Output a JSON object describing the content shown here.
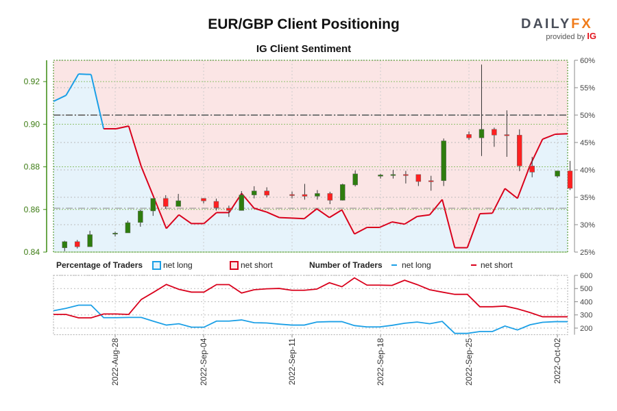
{
  "header": {
    "title": "EUR/GBP Client Positioning",
    "subtitle": "IG Client Sentiment",
    "logo_text": "DAILYFX",
    "logo_sub": "provided by",
    "logo_ig": "IG"
  },
  "legend": {
    "percentage_title": "Percentage of Traders",
    "pct_long": "net long",
    "pct_short": "net short",
    "number_title": "Number of Traders",
    "num_long": "net long",
    "num_short": "net short"
  },
  "colors": {
    "long": "#1a9fe6",
    "short": "#d9001b",
    "long_fill": "#e6f3fb",
    "short_fill": "#fbe5e5",
    "candle_up": "#2e7d0e",
    "candle_down": "#ff2020",
    "price_axis": "#3a8a10"
  },
  "chart_data": [
    {
      "type": "candlestick+line",
      "title": "EUR/GBP Client Positioning",
      "subtitle": "IG Client Sentiment",
      "price_axis": {
        "ticks": [
          "0.84",
          "0.86",
          "0.88",
          "0.90",
          "0.92"
        ],
        "ylim": [
          0.84,
          0.93
        ]
      },
      "percent_axis": {
        "ticks": [
          "25%",
          "30%",
          "35%",
          "40%",
          "45%",
          "50%",
          "55%",
          "60%"
        ],
        "ylim": [
          25,
          60
        ]
      },
      "reference_lines_percent": [
        50,
        33
      ],
      "x_ticks": [
        "2022-Aug-28",
        "2022-Sep-04",
        "2022-Sep-11",
        "2022-Sep-18",
        "2022-Sep-25",
        "2022-Oct-02"
      ],
      "net_long_percent": [
        52.5,
        53.6,
        57.5,
        57.4,
        47.5,
        47.5,
        48.0,
        40.6,
        35.0,
        29.3,
        31.8,
        30.2,
        30.2,
        32.2,
        32.2,
        35.7,
        33.0,
        32.3,
        31.3,
        31.2,
        31.1,
        32.9,
        31.3,
        32.7,
        28.3,
        29.5,
        29.5,
        30.5,
        30.1,
        31.5,
        31.8,
        34.6,
        25.8,
        25.8,
        32.0,
        32.1,
        36.6,
        34.8,
        40.8,
        45.6,
        46.5,
        46.6
      ],
      "candles": [
        {
          "date": "2022-08-24",
          "o": 0.842,
          "h": 0.8453,
          "l": 0.8404,
          "c": 0.8449
        },
        {
          "date": "2022-08-25",
          "o": 0.8449,
          "h": 0.8457,
          "l": 0.8417,
          "c": 0.8425
        },
        {
          "date": "2022-08-26",
          "o": 0.8425,
          "h": 0.85,
          "l": 0.8425,
          "c": 0.8482
        },
        {
          "date": "2022-08-28",
          "o": 0.8485,
          "h": 0.8496,
          "l": 0.8473,
          "c": 0.8489
        },
        {
          "date": "2022-08-29",
          "o": 0.849,
          "h": 0.8547,
          "l": 0.849,
          "c": 0.8538
        },
        {
          "date": "2022-08-30",
          "o": 0.8539,
          "h": 0.86,
          "l": 0.8519,
          "c": 0.8593
        },
        {
          "date": "2022-08-31",
          "o": 0.8593,
          "h": 0.8652,
          "l": 0.857,
          "c": 0.8652
        },
        {
          "date": "2022-09-01",
          "o": 0.8652,
          "h": 0.8667,
          "l": 0.8603,
          "c": 0.8614
        },
        {
          "date": "2022-09-02",
          "o": 0.8614,
          "h": 0.8673,
          "l": 0.8614,
          "c": 0.8641
        },
        {
          "date": "2022-09-04",
          "o": 0.8652,
          "h": 0.8652,
          "l": 0.8628,
          "c": 0.864
        },
        {
          "date": "2022-09-05",
          "o": 0.8638,
          "h": 0.8651,
          "l": 0.8595,
          "c": 0.8608
        },
        {
          "date": "2022-09-06",
          "o": 0.8606,
          "h": 0.8618,
          "l": 0.8565,
          "c": 0.8595
        },
        {
          "date": "2022-09-07",
          "o": 0.8595,
          "h": 0.8686,
          "l": 0.8595,
          "c": 0.8668
        },
        {
          "date": "2022-09-08",
          "o": 0.8668,
          "h": 0.8709,
          "l": 0.8652,
          "c": 0.8687
        },
        {
          "date": "2022-09-09",
          "o": 0.8687,
          "h": 0.8704,
          "l": 0.8657,
          "c": 0.8667
        },
        {
          "date": "2022-09-11",
          "o": 0.867,
          "h": 0.8684,
          "l": 0.8652,
          "c": 0.8667
        },
        {
          "date": "2022-09-12",
          "o": 0.867,
          "h": 0.872,
          "l": 0.8646,
          "c": 0.8662
        },
        {
          "date": "2022-09-13",
          "o": 0.8662,
          "h": 0.8691,
          "l": 0.8646,
          "c": 0.8675
        },
        {
          "date": "2022-09-14",
          "o": 0.8675,
          "h": 0.8683,
          "l": 0.8625,
          "c": 0.8643
        },
        {
          "date": "2022-09-15",
          "o": 0.8643,
          "h": 0.8721,
          "l": 0.8642,
          "c": 0.8717
        },
        {
          "date": "2022-09-16",
          "o": 0.8715,
          "h": 0.8783,
          "l": 0.8708,
          "c": 0.8767
        },
        {
          "date": "2022-09-18",
          "o": 0.8756,
          "h": 0.8767,
          "l": 0.8745,
          "c": 0.8762
        },
        {
          "date": "2022-09-19",
          "o": 0.876,
          "h": 0.8785,
          "l": 0.8745,
          "c": 0.8764
        },
        {
          "date": "2022-09-20",
          "o": 0.8764,
          "h": 0.8781,
          "l": 0.8722,
          "c": 0.8762
        },
        {
          "date": "2022-09-21",
          "o": 0.8764,
          "h": 0.8764,
          "l": 0.871,
          "c": 0.8731
        },
        {
          "date": "2022-09-22",
          "o": 0.8735,
          "h": 0.8758,
          "l": 0.8688,
          "c": 0.8733
        },
        {
          "date": "2022-09-23",
          "o": 0.8735,
          "h": 0.8933,
          "l": 0.871,
          "c": 0.8922
        },
        {
          "date": "2022-09-25",
          "o": 0.8952,
          "h": 0.8966,
          "l": 0.8926,
          "c": 0.8936
        },
        {
          "date": "2022-09-26",
          "o": 0.8936,
          "h": 0.928,
          "l": 0.8851,
          "c": 0.8976
        },
        {
          "date": "2022-09-27",
          "o": 0.8976,
          "h": 0.8984,
          "l": 0.8894,
          "c": 0.8949
        },
        {
          "date": "2022-09-28",
          "o": 0.8951,
          "h": 0.9065,
          "l": 0.8847,
          "c": 0.8949
        },
        {
          "date": "2022-09-29",
          "o": 0.8949,
          "h": 0.8976,
          "l": 0.878,
          "c": 0.8804
        },
        {
          "date": "2022-09-30",
          "o": 0.8804,
          "h": 0.8847,
          "l": 0.8751,
          "c": 0.8775
        },
        {
          "date": "2022-10-02",
          "o": 0.8756,
          "h": 0.8781,
          "l": 0.8749,
          "c": 0.8781
        },
        {
          "date": "2022-10-03",
          "o": 0.8781,
          "h": 0.8828,
          "l": 0.8691,
          "c": 0.8699
        }
      ]
    },
    {
      "type": "line",
      "y_ticks": [
        "200",
        "300",
        "400",
        "500",
        "600"
      ],
      "ylim": [
        150,
        600
      ],
      "x_ticks": [
        "2022-Aug-28",
        "2022-Sep-04",
        "2022-Sep-11",
        "2022-Sep-18",
        "2022-Sep-25",
        "2022-Oct-02"
      ],
      "series": [
        {
          "name": "net long",
          "values": [
            332,
            350,
            374,
            374,
            279,
            279,
            281,
            281,
            251,
            223,
            233,
            207,
            207,
            253,
            253,
            262,
            241,
            239,
            230,
            223,
            223,
            246,
            249,
            249,
            219,
            209,
            209,
            221,
            237,
            246,
            233,
            251,
            160,
            160,
            174,
            174,
            216,
            186,
            225,
            244,
            249,
            249
          ]
        },
        {
          "name": "net short",
          "values": [
            304,
            304,
            278,
            278,
            307,
            307,
            304,
            417,
            473,
            531,
            494,
            473,
            473,
            530,
            530,
            466,
            491,
            498,
            501,
            487,
            487,
            496,
            544,
            514,
            581,
            526,
            526,
            524,
            563,
            530,
            491,
            473,
            456,
            456,
            362,
            362,
            367,
            346,
            318,
            286,
            286,
            286
          ]
        }
      ]
    }
  ]
}
